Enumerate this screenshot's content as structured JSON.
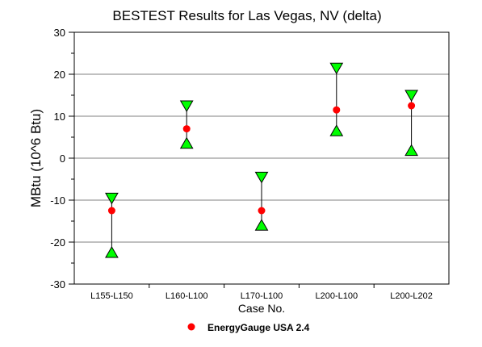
{
  "chart_data": {
    "type": "scatter",
    "title": "BESTEST Results for Las Vegas, NV (delta)",
    "xlabel": "Case No.",
    "ylabel": "MBtu (10^6 Btu)",
    "ylim": [
      -30,
      30
    ],
    "yticks": [
      30,
      20,
      10,
      0,
      -10,
      -20,
      -30
    ],
    "grid": true,
    "legend_position": "bottom",
    "categories": [
      "L155-L150",
      "L160-L100",
      "L170-L100",
      "L200-L100",
      "L200-L202"
    ],
    "range_max": [
      -9.5,
      12.5,
      -4.5,
      21.5,
      15
    ],
    "range_min": [
      -22.5,
      3.5,
      -16,
      6.5,
      1.8
    ],
    "series": [
      {
        "name": "EnergyGauge USA 2.4",
        "values": [
          -12.5,
          7,
          -12.5,
          11.5,
          12.5
        ],
        "color": "#ff0000"
      }
    ],
    "colors": {
      "range_marker": "#00ff00",
      "grid": "#808080"
    }
  }
}
